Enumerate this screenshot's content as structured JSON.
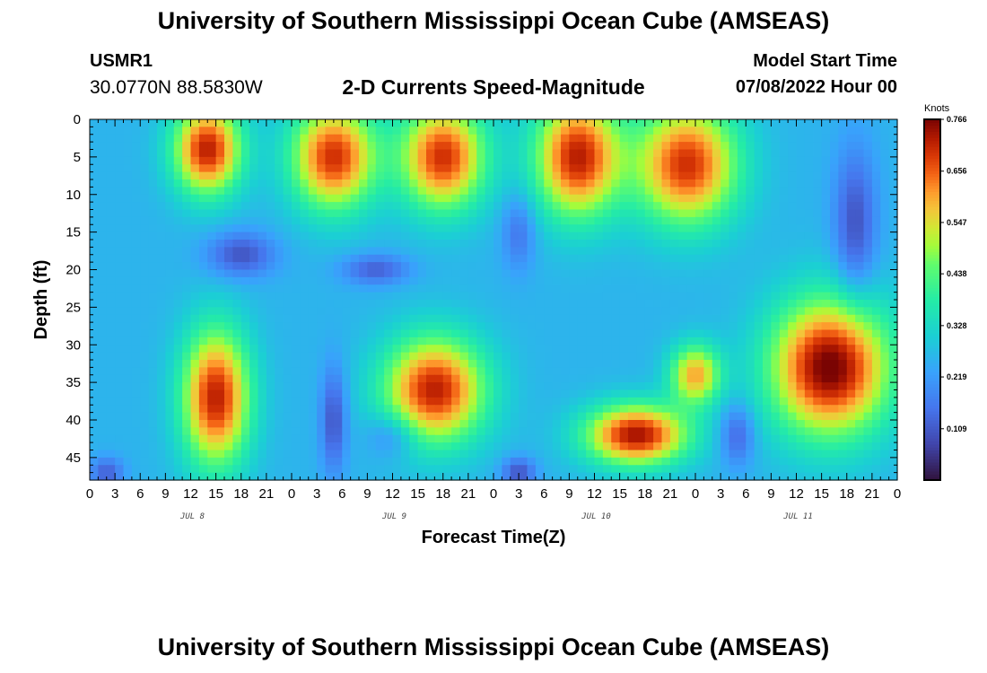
{
  "header": {
    "title": "University of Southern Mississippi Ocean Cube (AMSEAS)",
    "station": "USMR1",
    "coordinates": "30.0770N  88.5830W",
    "subtitle": "2-D Currents Speed-Magnitude",
    "model_start_label": "Model Start Time",
    "model_start_value": "07/08/2022 Hour 00"
  },
  "footer": {
    "title": "University of Southern Mississippi Ocean Cube (AMSEAS)"
  },
  "chart_data": {
    "type": "heatmap",
    "title": "2-D Currents Speed-Magnitude",
    "xlabel": "Forecast Time(Z)",
    "ylabel": "Depth (ft)",
    "x_range_hours": [
      0,
      96
    ],
    "y_range_ft": [
      0,
      48
    ],
    "x_tick_labels": [
      "0",
      "3",
      "6",
      "9",
      "12",
      "15",
      "18",
      "21",
      "0",
      "3",
      "6",
      "9",
      "12",
      "15",
      "18",
      "21",
      "0",
      "3",
      "6",
      "9",
      "12",
      "15",
      "18",
      "21",
      "0",
      "3",
      "6",
      "9",
      "12",
      "15",
      "18",
      "21",
      "0"
    ],
    "y_tick_labels": [
      "0",
      "5",
      "10",
      "15",
      "20",
      "25",
      "30",
      "35",
      "40",
      "45"
    ],
    "y_tick_values": [
      0,
      5,
      10,
      15,
      20,
      25,
      30,
      35,
      40,
      45
    ],
    "day_labels": [
      {
        "text": "JUL 8",
        "hour": 12
      },
      {
        "text": "JUL 9",
        "hour": 36
      },
      {
        "text": "JUL 10",
        "hour": 60
      },
      {
        "text": "JUL 11",
        "hour": 84
      }
    ],
    "colorbar": {
      "title": "Knots",
      "min": 0.0,
      "max": 0.766,
      "labels": [
        "0.766",
        "0.656",
        "0.547",
        "0.438",
        "0.328",
        "0.219",
        "0.109"
      ],
      "label_values": [
        0.766,
        0.656,
        0.547,
        0.438,
        0.328,
        0.219,
        0.109
      ]
    },
    "speed_features": [
      {
        "hour": 14,
        "depth": 4,
        "speed": 0.72,
        "sx": 4,
        "sy": 6
      },
      {
        "hour": 29,
        "depth": 5,
        "speed": 0.7,
        "sx": 5,
        "sy": 7
      },
      {
        "hour": 42,
        "depth": 5,
        "speed": 0.7,
        "sx": 5,
        "sy": 7
      },
      {
        "hour": 58,
        "depth": 5,
        "speed": 0.72,
        "sx": 5,
        "sy": 8
      },
      {
        "hour": 71,
        "depth": 6,
        "speed": 0.7,
        "sx": 6,
        "sy": 8
      },
      {
        "hour": 15,
        "depth": 37,
        "speed": 0.72,
        "sx": 4,
        "sy": 9
      },
      {
        "hour": 41,
        "depth": 36,
        "speed": 0.72,
        "sx": 6,
        "sy": 7
      },
      {
        "hour": 65,
        "depth": 42,
        "speed": 0.74,
        "sx": 6,
        "sy": 4
      },
      {
        "hour": 72,
        "depth": 34,
        "speed": 0.6,
        "sx": 3,
        "sy": 4
      },
      {
        "hour": 88,
        "depth": 33,
        "speed": 0.78,
        "sx": 7,
        "sy": 9
      },
      {
        "hour": 29,
        "depth": 40,
        "speed": 0.1,
        "sx": 1.5,
        "sy": 7
      },
      {
        "hour": 36,
        "depth": 42,
        "speed": 0.15,
        "sx": 3,
        "sy": 3
      },
      {
        "hour": 18,
        "depth": 18,
        "speed": 0.1,
        "sx": 4,
        "sy": 3
      },
      {
        "hour": 34,
        "depth": 20,
        "speed": 0.12,
        "sx": 4,
        "sy": 2
      },
      {
        "hour": 51,
        "depth": 15,
        "speed": 0.15,
        "sx": 2,
        "sy": 5
      },
      {
        "hour": 91,
        "depth": 14,
        "speed": 0.1,
        "sx": 2.5,
        "sy": 10
      },
      {
        "hour": 77,
        "depth": 42,
        "speed": 0.12,
        "sx": 2,
        "sy": 4
      },
      {
        "hour": 51,
        "depth": 47,
        "speed": 0.1,
        "sx": 2,
        "sy": 2
      },
      {
        "hour": 2,
        "depth": 47,
        "speed": 0.12,
        "sx": 2,
        "sy": 2
      }
    ]
  }
}
